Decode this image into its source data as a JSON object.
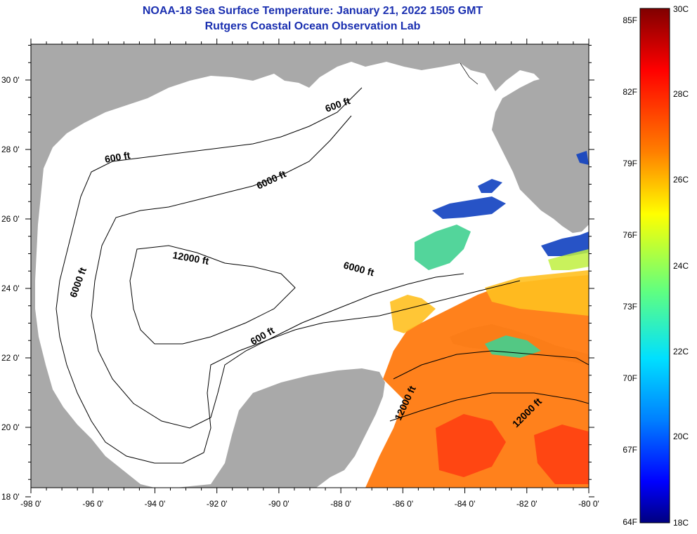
{
  "title": {
    "line1": "NOAA-18 Sea Surface Temperature:  January 21, 2022 1505 GMT",
    "line2": "Rutgers Coastal Ocean Observation Lab"
  },
  "map": {
    "lon_ticks": [
      "-98 0'",
      "-96 0'",
      "-94 0'",
      "-92 0'",
      "-90 0'",
      "-88 0'",
      "-86 0'",
      "-84 0'",
      "-82 0'",
      "-80 0'"
    ],
    "lat_ticks": [
      "30 0'",
      "28 0'",
      "26 0'",
      "24 0'",
      "22 0'",
      "20 0'",
      "18 0'"
    ],
    "contour_labels": [
      "600 ft",
      "600 ft",
      "6000 ft",
      "12000 ft",
      "6000 ft",
      "6000 ft",
      "600 ft",
      "12000 ft",
      "12000 ft"
    ],
    "colors": {
      "land": "#a9a9a9",
      "ocean": "#ffffff",
      "contour": "#000000"
    }
  },
  "colorbar": {
    "f_labels": [
      "85F",
      "82F",
      "79F",
      "76F",
      "73F",
      "70F",
      "67F",
      "64F"
    ],
    "c_labels": [
      "30C",
      "28C",
      "26C",
      "24C",
      "22C",
      "20C",
      "18C"
    ],
    "gradient": [
      "#800000",
      "#ff0000",
      "#ff8000",
      "#ffff00",
      "#80ff80",
      "#00ffff",
      "#0080ff",
      "#0000ff",
      "#000080"
    ]
  }
}
